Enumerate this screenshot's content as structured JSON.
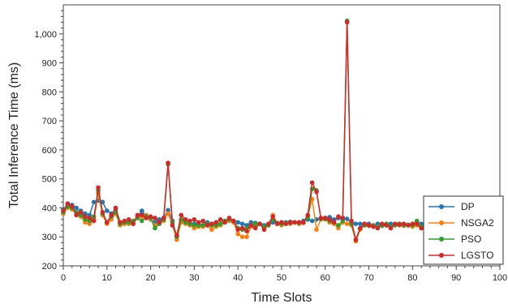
{
  "chart_data": {
    "type": "line",
    "xlabel": "Time Slots",
    "ylabel": "Total Inference Time (ms)",
    "xlim": [
      0,
      100
    ],
    "ylim": [
      200,
      1100
    ],
    "x_ticks": [
      "0",
      "10",
      "20",
      "30",
      "40",
      "50",
      "60",
      "70",
      "80",
      "90",
      "100"
    ],
    "y_ticks": [
      "200",
      "300",
      "400",
      "500",
      "600",
      "700",
      "800",
      "900",
      "1,000"
    ],
    "legend_position": "bottom-right",
    "grid": false,
    "x": [
      0,
      1,
      2,
      3,
      4,
      5,
      6,
      7,
      8,
      9,
      10,
      11,
      12,
      13,
      14,
      15,
      16,
      17,
      18,
      19,
      20,
      21,
      22,
      23,
      24,
      25,
      26,
      27,
      28,
      29,
      30,
      31,
      32,
      33,
      34,
      35,
      36,
      37,
      38,
      39,
      40,
      41,
      42,
      43,
      44,
      45,
      46,
      47,
      48,
      49,
      50,
      51,
      52,
      53,
      54,
      55,
      56,
      57,
      58,
      59,
      60,
      61,
      62,
      63,
      64,
      65,
      66,
      67,
      68,
      69,
      70,
      71,
      72,
      73,
      74,
      75,
      76,
      77,
      78,
      79,
      80,
      81,
      82
    ],
    "series": [
      {
        "name": "DP",
        "color": "#1f77b4",
        "values": [
          395,
          410,
          410,
          400,
          390,
          380,
          375,
          420,
          425,
          420,
          390,
          380,
          395,
          350,
          345,
          350,
          345,
          370,
          390,
          370,
          360,
          350,
          360,
          365,
          392,
          355,
          300,
          355,
          350,
          345,
          345,
          345,
          340,
          350,
          345,
          340,
          345,
          355,
          360,
          355,
          350,
          345,
          340,
          350,
          348,
          345,
          340,
          342,
          350,
          345,
          350,
          350,
          352,
          350,
          350,
          355,
          360,
          355,
          360,
          362,
          365,
          368,
          360,
          365,
          362,
          362,
          350,
          345,
          345,
          340,
          345,
          340,
          345,
          342,
          340,
          345,
          342,
          345,
          342,
          340,
          345,
          350,
          345
        ]
      },
      {
        "name": "NSGA2",
        "color": "#ff7f0e",
        "values": [
          380,
          400,
          395,
          380,
          370,
          350,
          345,
          360,
          450,
          375,
          345,
          360,
          380,
          340,
          345,
          345,
          350,
          365,
          370,
          375,
          360,
          340,
          350,
          355,
          380,
          340,
          290,
          350,
          345,
          340,
          330,
          335,
          335,
          340,
          325,
          335,
          340,
          350,
          355,
          350,
          310,
          300,
          300,
          335,
          340,
          345,
          330,
          340,
          375,
          345,
          340,
          345,
          345,
          350,
          345,
          348,
          370,
          430,
          325,
          360,
          360,
          350,
          345,
          330,
          350,
          345,
          340,
          285,
          325,
          340,
          338,
          340,
          335,
          340,
          345,
          330,
          340,
          340,
          338,
          340,
          335,
          340,
          330
        ]
      },
      {
        "name": "PSO",
        "color": "#2ca02c",
        "values": [
          385,
          405,
          400,
          385,
          375,
          360,
          355,
          370,
          460,
          380,
          350,
          370,
          385,
          345,
          350,
          350,
          355,
          365,
          355,
          370,
          365,
          330,
          345,
          360,
          550,
          350,
          300,
          360,
          350,
          345,
          340,
          340,
          340,
          345,
          340,
          340,
          345,
          355,
          360,
          355,
          330,
          325,
          330,
          340,
          345,
          345,
          335,
          340,
          360,
          348,
          345,
          348,
          348,
          350,
          348,
          350,
          365,
          465,
          460,
          362,
          362,
          355,
          350,
          340,
          355,
          1045,
          345,
          290,
          330,
          340,
          340,
          338,
          335,
          338,
          345,
          335,
          340,
          345,
          340,
          342,
          340,
          355,
          335
        ]
      },
      {
        "name": "LGSTO",
        "color": "#d62728",
        "values": [
          390,
          415,
          405,
          375,
          385,
          370,
          365,
          355,
          470,
          385,
          350,
          375,
          400,
          350,
          355,
          360,
          345,
          375,
          375,
          365,
          370,
          365,
          350,
          365,
          555,
          340,
          305,
          375,
          360,
          355,
          360,
          350,
          355,
          340,
          345,
          350,
          360,
          350,
          365,
          355,
          325,
          330,
          320,
          340,
          330,
          345,
          325,
          345,
          370,
          345,
          350,
          345,
          350,
          350,
          350,
          350,
          375,
          487,
          455,
          365,
          365,
          360,
          350,
          370,
          365,
          1040,
          355,
          290,
          330,
          345,
          340,
          335,
          330,
          345,
          340,
          330,
          345,
          342,
          345,
          340,
          345,
          345,
          330
        ]
      }
    ]
  }
}
